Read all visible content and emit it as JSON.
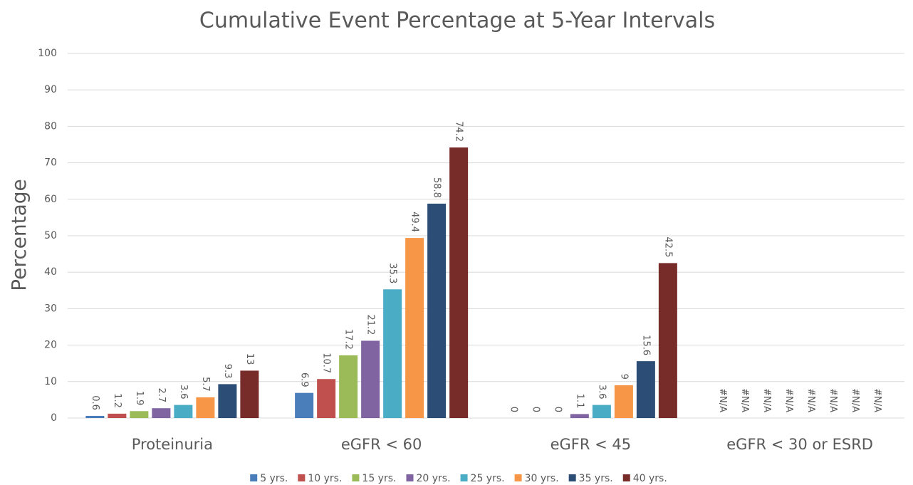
{
  "chart_data": {
    "type": "bar",
    "title": "Cumulative Event Percentage at 5-Year Intervals",
    "y_label": "Percentage",
    "categories": [
      "Proteinuria",
      "eGFR < 60",
      "eGFR < 45",
      "eGFR < 30 or ESRD"
    ],
    "series": [
      {
        "name": "5 yrs.",
        "color": "#4a7ebb",
        "values": [
          0.6,
          6.9,
          0,
          null
        ],
        "value_labels": [
          "0.6",
          "6.9",
          "0",
          "#N/A"
        ]
      },
      {
        "name": "10 yrs.",
        "color": "#c0504d",
        "values": [
          1.2,
          10.7,
          0,
          null
        ],
        "value_labels": [
          "1.2",
          "10.7",
          "0",
          "#N/A"
        ]
      },
      {
        "name": "15 yrs.",
        "color": "#9bbb59",
        "values": [
          1.9,
          17.2,
          0,
          null
        ],
        "value_labels": [
          "1.9",
          "17.2",
          "0",
          "#N/A"
        ]
      },
      {
        "name": "20 yrs.",
        "color": "#8064a2",
        "values": [
          2.7,
          21.2,
          1.1,
          null
        ],
        "value_labels": [
          "2.7",
          "21.2",
          "1.1",
          "#N/A"
        ]
      },
      {
        "name": "25 yrs.",
        "color": "#4bacc6",
        "values": [
          3.6,
          35.3,
          3.6,
          null
        ],
        "value_labels": [
          "3.6",
          "35.3",
          "3.6",
          "#N/A"
        ]
      },
      {
        "name": "30 yrs.",
        "color": "#f79646",
        "values": [
          5.7,
          49.4,
          9,
          null
        ],
        "value_labels": [
          "5.7",
          "49.4",
          "9",
          "#N/A"
        ]
      },
      {
        "name": "35 yrs.",
        "color": "#2c4d75",
        "values": [
          9.3,
          58.8,
          15.6,
          null
        ],
        "value_labels": [
          "9.3",
          "58.8",
          "15.6",
          "#N/A"
        ]
      },
      {
        "name": "40 yrs.",
        "color": "#772c2a",
        "values": [
          13,
          74.2,
          42.5,
          null
        ],
        "value_labels": [
          "13",
          "74.2",
          "42.5",
          "#N/A"
        ]
      }
    ],
    "ylim": [
      0,
      100
    ],
    "yticks": [
      0,
      10,
      20,
      30,
      40,
      50,
      60,
      70,
      80,
      90,
      100
    ],
    "grid": true,
    "legend": "bottom"
  }
}
